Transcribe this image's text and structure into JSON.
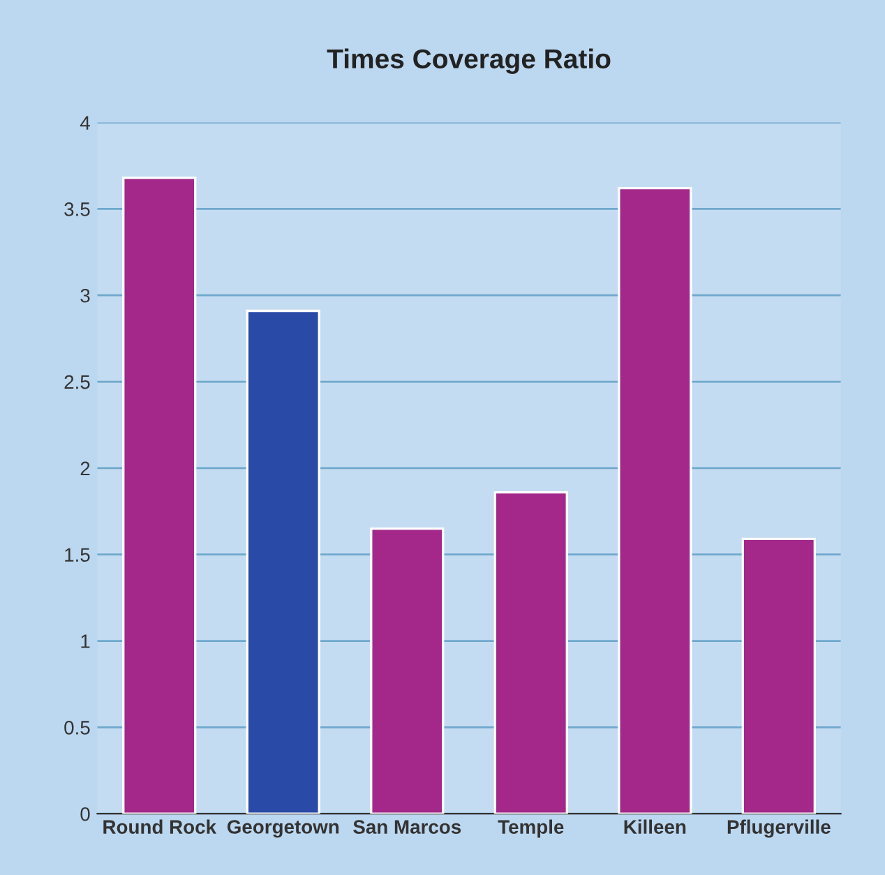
{
  "chart_data": {
    "type": "bar",
    "title": "Times Coverage Ratio",
    "categories": [
      "Round Rock",
      "Georgetown",
      "San Marcos",
      "Temple",
      "Killeen",
      "Pflugerville"
    ],
    "values": [
      3.68,
      2.91,
      1.65,
      1.86,
      3.62,
      1.59
    ],
    "colors": [
      "#a3288a",
      "#2a4aa8",
      "#a3288a",
      "#a3288a",
      "#a3288a",
      "#a3288a"
    ],
    "ylim": [
      0,
      4
    ],
    "yticks": [
      0,
      0.5,
      1,
      1.5,
      2,
      2.5,
      3,
      3.5,
      4
    ],
    "grid": "y"
  }
}
